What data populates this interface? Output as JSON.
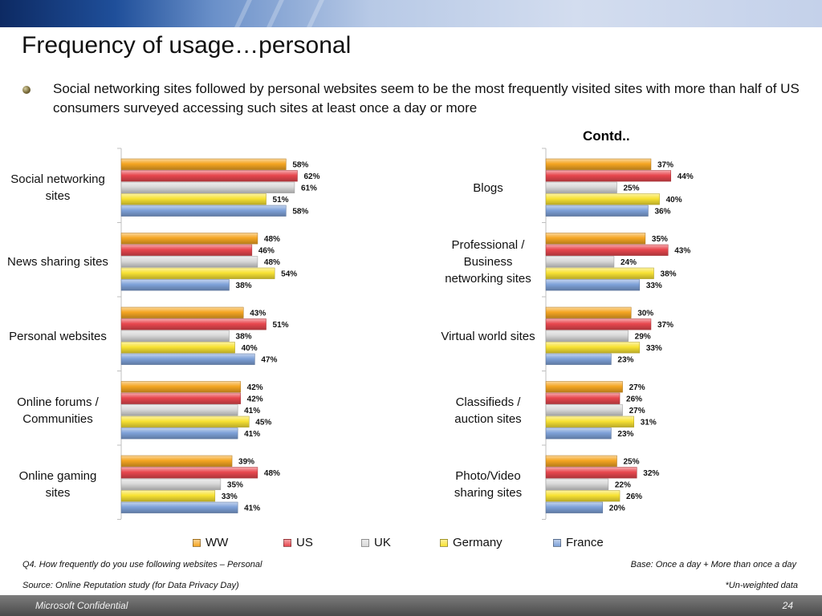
{
  "header": {
    "title": "Frequency of usage…personal",
    "bullet": "Social networking sites followed by personal websites seem to be the most frequently visited sites with more than half of US consumers surveyed accessing such sites at least once a day or more",
    "contd": "Contd.."
  },
  "colors": {
    "WW": "#f5a623",
    "US": "#e8474e",
    "UK": "#d9d9d9",
    "Germany": "#f8e234",
    "France": "#7fa2d9"
  },
  "chart_data": [
    {
      "type": "bar",
      "orientation": "horizontal",
      "categories": [
        "Social networking sites",
        "News sharing sites",
        "Personal websites",
        "Online forums / Communities",
        "Online gaming sites"
      ],
      "series": [
        {
          "name": "WW",
          "values": [
            58,
            48,
            43,
            42,
            39
          ]
        },
        {
          "name": "US",
          "values": [
            62,
            46,
            51,
            42,
            48
          ]
        },
        {
          "name": "UK",
          "values": [
            61,
            48,
            38,
            41,
            35
          ]
        },
        {
          "name": "Germany",
          "values": [
            51,
            54,
            40,
            45,
            33
          ]
        },
        {
          "name": "France",
          "values": [
            58,
            38,
            47,
            41,
            41
          ]
        }
      ],
      "value_suffix": "%",
      "xlim": [
        0,
        100
      ]
    },
    {
      "type": "bar",
      "orientation": "horizontal",
      "categories": [
        "Blogs",
        "Professional / Business networking sites",
        "Virtual world sites",
        "Classifieds / auction sites",
        "Photo/Video sharing sites"
      ],
      "series": [
        {
          "name": "WW",
          "values": [
            37,
            35,
            30,
            27,
            25
          ]
        },
        {
          "name": "US",
          "values": [
            44,
            43,
            37,
            26,
            32
          ]
        },
        {
          "name": "UK",
          "values": [
            25,
            24,
            29,
            27,
            22
          ]
        },
        {
          "name": "Germany",
          "values": [
            40,
            38,
            33,
            31,
            26
          ]
        },
        {
          "name": "France",
          "values": [
            36,
            33,
            23,
            23,
            20
          ]
        }
      ],
      "value_suffix": "%",
      "xlim": [
        0,
        100
      ]
    }
  ],
  "category_label_lines": {
    "left": [
      [
        "Social networking",
        "sites"
      ],
      [
        "News sharing sites"
      ],
      [
        "Personal websites"
      ],
      [
        "Online forums /",
        "Communities"
      ],
      [
        "Online gaming",
        "sites"
      ]
    ],
    "right": [
      [
        "Blogs"
      ],
      [
        "Professional /",
        "Business",
        "networking sites"
      ],
      [
        "Virtual world sites"
      ],
      [
        "Classifieds /",
        "auction sites"
      ],
      [
        "Photo/Video",
        "sharing sites"
      ]
    ]
  },
  "legend": [
    "WW",
    "US",
    "UK",
    "Germany",
    "France"
  ],
  "footer": {
    "question": "Q4. How frequently do you use following websites – Personal",
    "base": "Base: Once a day + More than once a day",
    "source": "Source: Online Reputation study (for Data Privacy Day)",
    "unweighted": "*Un-weighted data",
    "confidential": "Microsoft Confidential",
    "page_number": "24"
  }
}
